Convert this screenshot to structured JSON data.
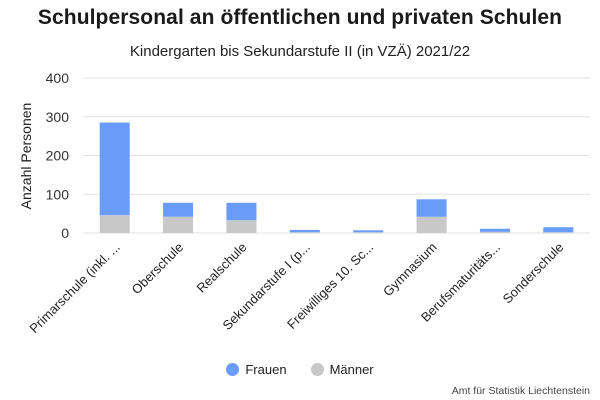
{
  "colors": {
    "frauen": "#6a9cfc",
    "maenner": "#c8c8c8",
    "grid": "#e2e2e2"
  },
  "source": "Amt für Statistik Liechtenstein",
  "chart_data": {
    "type": "bar",
    "stacked": true,
    "title": "Schulpersonal an öffentlichen und privaten Schulen",
    "subtitle": "Kindergarten bis Sekundarstufe II (in VZÄ) 2021/22",
    "xlabel": "",
    "ylabel": "Anzahl Personen",
    "ylim": [
      0,
      400
    ],
    "yticks": [
      0,
      100,
      200,
      300,
      400
    ],
    "grid": true,
    "legend_position": "bottom",
    "categories": [
      "Primarschule (inkl. ...",
      "Oberschule",
      "Realschule",
      "Sekundarstufe I (p...",
      "Freiwilliges 10. Sc...",
      "Gymnasium",
      "Berufsmaturitäts...",
      "Sonderschule"
    ],
    "series": [
      {
        "name": "Männer",
        "color": "#c8c8c8",
        "values": [
          46,
          42,
          33,
          2,
          2,
          42,
          3,
          2
        ]
      },
      {
        "name": "Frauen",
        "color": "#6a9cfc",
        "values": [
          239,
          36,
          45,
          6,
          5,
          45,
          8,
          13
        ]
      }
    ]
  }
}
